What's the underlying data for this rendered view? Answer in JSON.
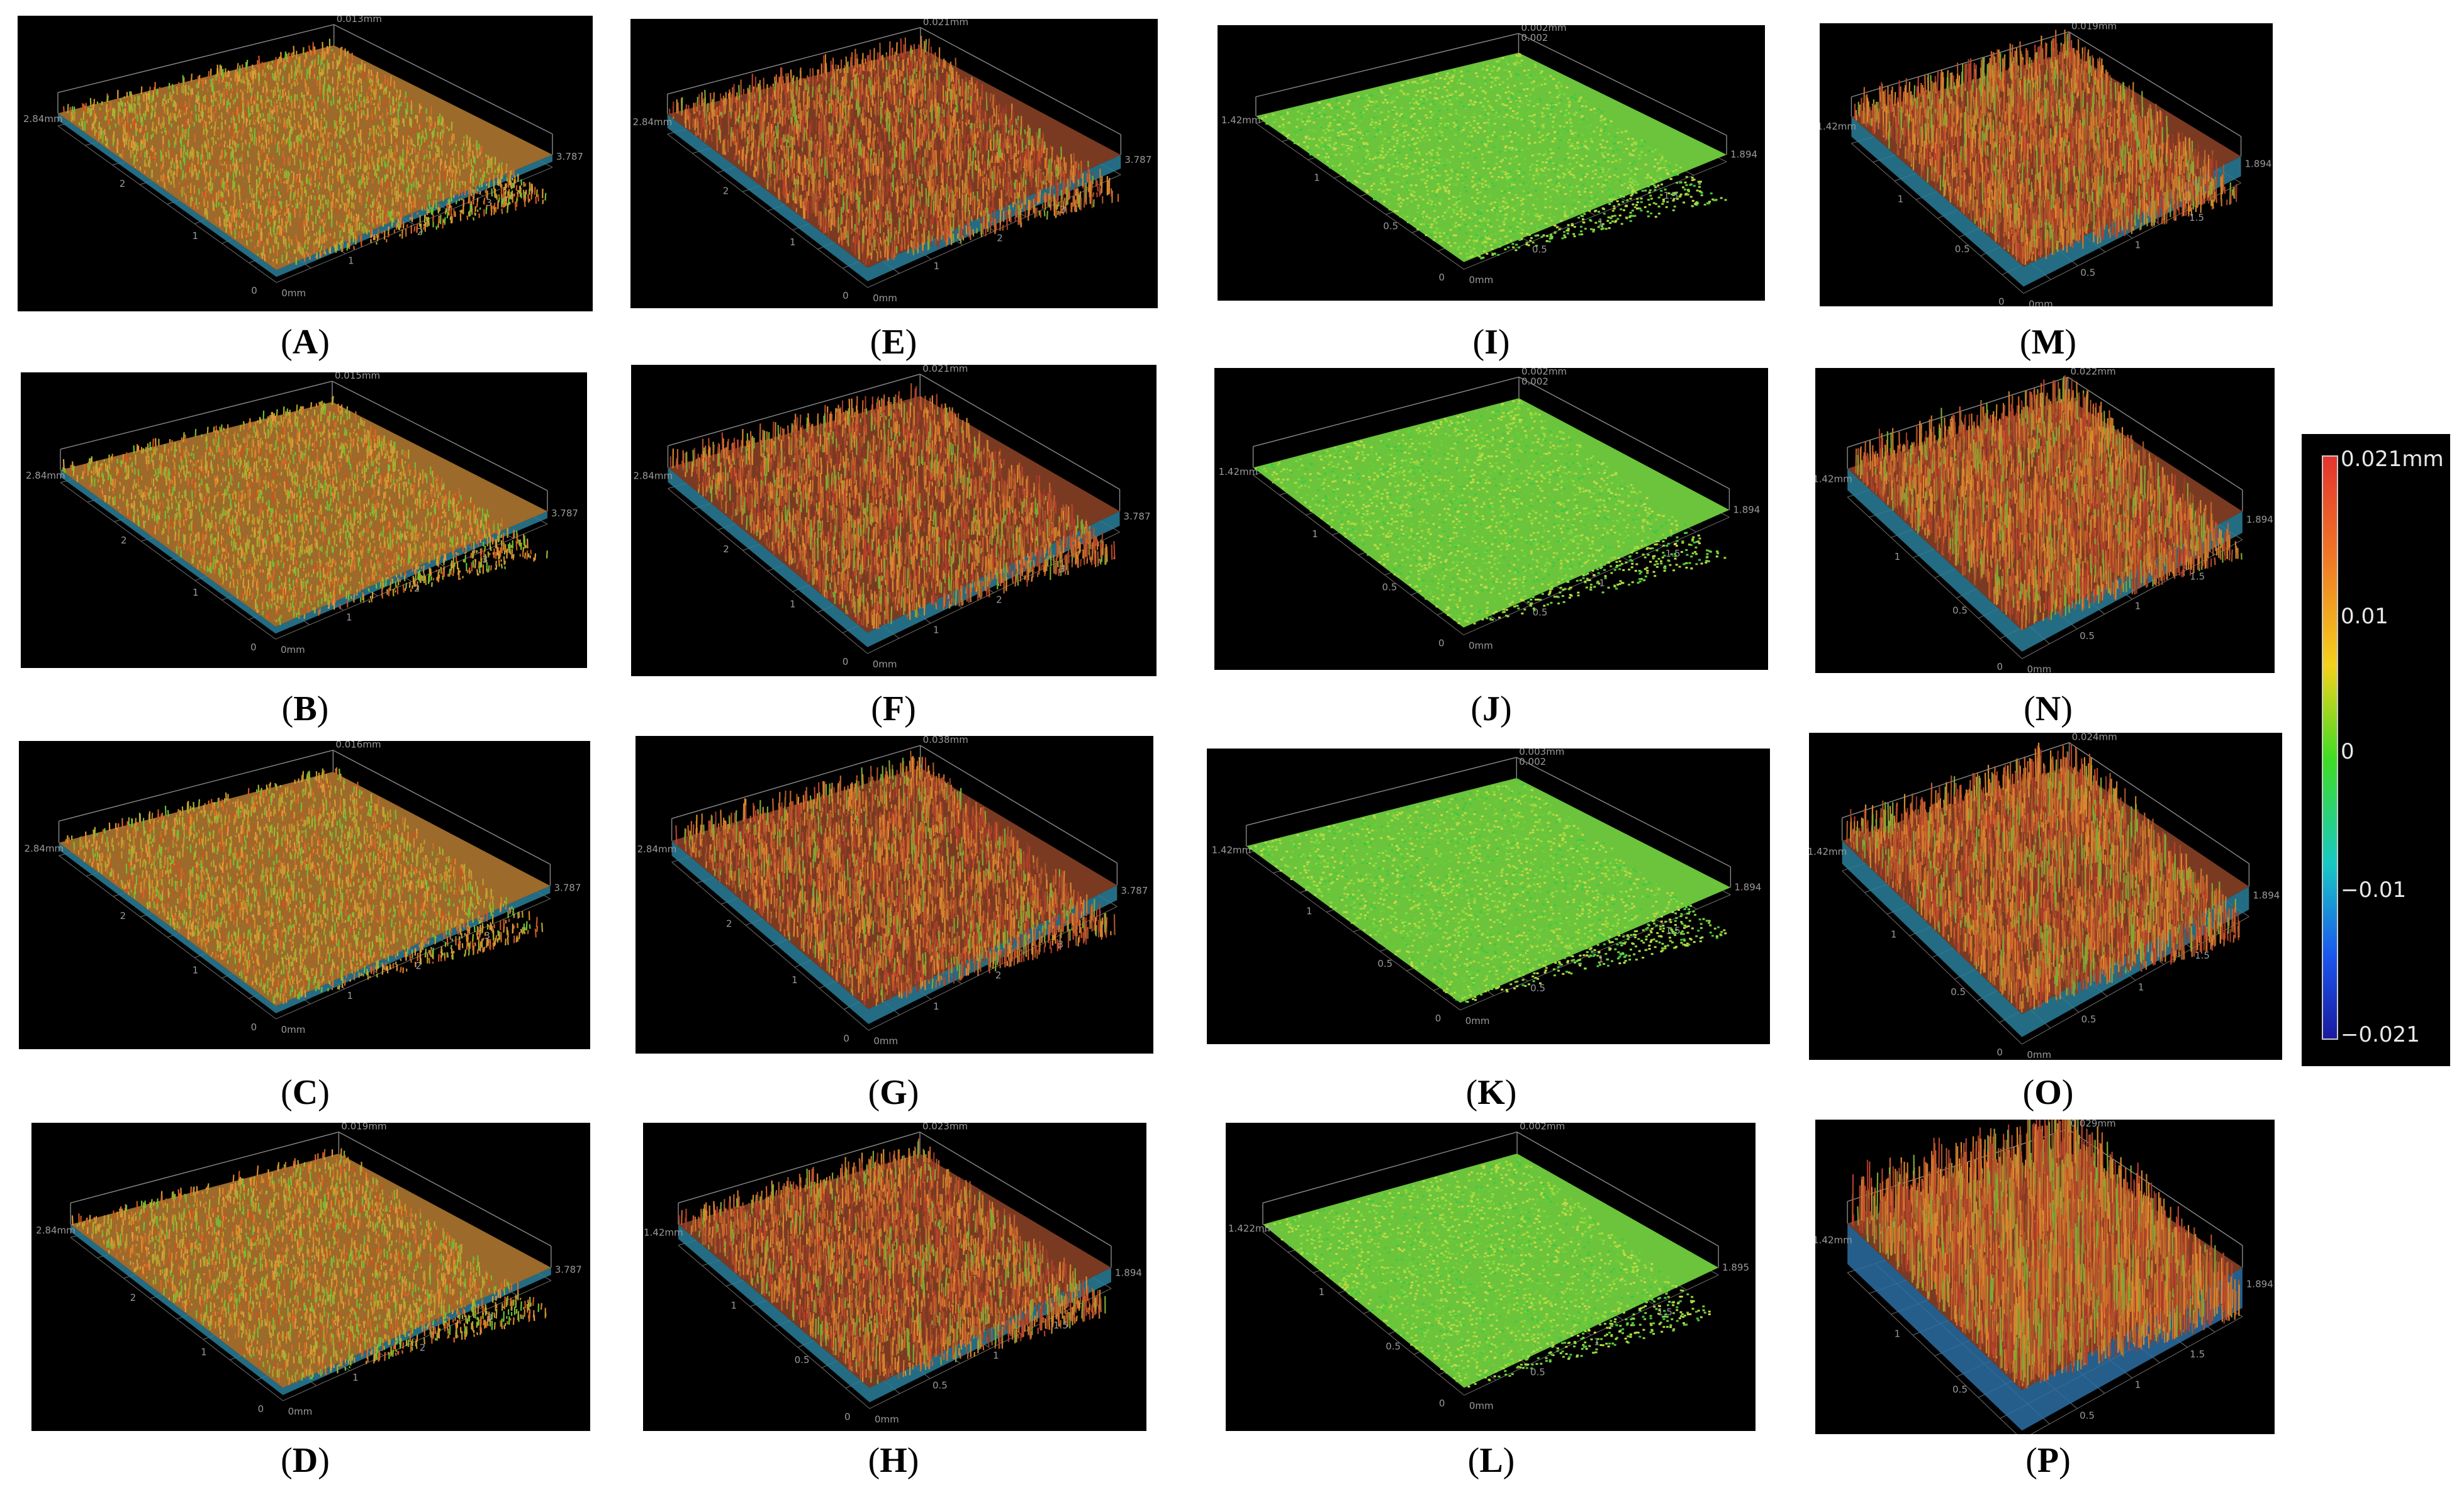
{
  "panels": [
    {
      "id": "A",
      "caption_letter": "A",
      "zmax": "0.013mm",
      "y_label": "2.84mm",
      "x_end": "3.787",
      "origin_y": "0",
      "origin_x": "0mm",
      "y_ticks": [
        "1",
        "2"
      ],
      "x_ticks": [
        "1",
        "2",
        "3"
      ],
      "style": "flat",
      "palette": "orange"
    },
    {
      "id": "B",
      "caption_letter": "B",
      "zmax": "0.015mm",
      "y_label": "2.84mm",
      "x_end": "3.787",
      "origin_y": "0",
      "origin_x": "0mm",
      "y_ticks": [
        "1",
        "2"
      ],
      "x_ticks": [
        "1",
        "2",
        "3"
      ],
      "style": "flat",
      "palette": "orange"
    },
    {
      "id": "C",
      "caption_letter": "C",
      "zmax": "0.016mm",
      "y_label": "2.84mm",
      "x_end": "3.787",
      "origin_y": "0",
      "origin_x": "0mm",
      "y_ticks": [
        "1",
        "2"
      ],
      "x_ticks": [
        "1",
        "2",
        "3"
      ],
      "style": "flat",
      "palette": "orange"
    },
    {
      "id": "D",
      "caption_letter": "D",
      "zmax": "0.019mm",
      "y_label": "2.84mm",
      "x_end": "3.787",
      "origin_y": "0",
      "origin_x": "0mm",
      "y_ticks": [
        "1",
        "2"
      ],
      "x_ticks": [
        "1",
        "2",
        "3"
      ],
      "style": "flat",
      "palette": "orange"
    },
    {
      "id": "E",
      "caption_letter": "E",
      "zmax": "0.021mm",
      "y_label": "2.84mm",
      "x_end": "3.787",
      "origin_y": "0",
      "origin_x": "0mm",
      "y_ticks": [
        "1",
        "2"
      ],
      "x_ticks": [
        "1",
        "2",
        "3"
      ],
      "style": "rough",
      "palette": "red"
    },
    {
      "id": "F",
      "caption_letter": "F",
      "zmax": "0.021mm",
      "y_label": "2.84mm",
      "x_end": "3.787",
      "origin_y": "0",
      "origin_x": "0mm",
      "y_ticks": [
        "1",
        "2"
      ],
      "x_ticks": [
        "1",
        "2",
        "3"
      ],
      "style": "rough",
      "palette": "red"
    },
    {
      "id": "G",
      "caption_letter": "G",
      "zmax": "0.038mm",
      "y_label": "2.84mm",
      "x_end": "3.787",
      "origin_y": "0",
      "origin_x": "0mm",
      "y_ticks": [
        "1",
        "2"
      ],
      "x_ticks": [
        "1",
        "2",
        "3"
      ],
      "style": "rough",
      "palette": "red"
    },
    {
      "id": "H",
      "caption_letter": "H",
      "zmax": "0.023mm",
      "y_label": "1.42mm",
      "x_end": "1.894",
      "origin_y": "0",
      "origin_x": "0mm",
      "y_ticks": [
        "0.5",
        "1"
      ],
      "x_ticks": [
        "0.5",
        "1",
        "1.5"
      ],
      "style": "rough",
      "palette": "red"
    },
    {
      "id": "I",
      "caption_letter": "I",
      "zmax": "0.002mm",
      "zmax2": "0.002",
      "y_label": "1.42mm",
      "x_end": "1.894",
      "origin_y": "0",
      "origin_x": "0mm",
      "y_ticks": [
        "0.5",
        "1"
      ],
      "x_ticks": [
        "0.5",
        "1",
        "1.5"
      ],
      "style": "smooth",
      "palette": "green"
    },
    {
      "id": "J",
      "caption_letter": "J",
      "zmax": "0.002mm",
      "zmax2": "0.002",
      "y_label": "1.42mm",
      "x_end": "1.894",
      "origin_y": "0",
      "origin_x": "0mm",
      "y_ticks": [
        "0.5",
        "1"
      ],
      "x_ticks": [
        "0.5",
        "1",
        "1.5"
      ],
      "style": "smooth",
      "palette": "green"
    },
    {
      "id": "K",
      "caption_letter": "K",
      "zmax": "0.003mm",
      "zmax2": "0.002",
      "y_label": "1.42mm",
      "x_end": "1.894",
      "origin_y": "0",
      "origin_x": "0mm",
      "y_ticks": [
        "0.5",
        "1"
      ],
      "x_ticks": [
        "0.5",
        "1",
        "1.5"
      ],
      "style": "smooth",
      "palette": "green"
    },
    {
      "id": "L",
      "caption_letter": "L",
      "zmax": "0.002mm",
      "y_label": "1.422mm",
      "x_end": "1.895",
      "origin_y": "0",
      "origin_x": "0mm",
      "y_ticks": [
        "0.5",
        "1"
      ],
      "x_ticks": [
        "0.5",
        "1",
        "1.5"
      ],
      "style": "smooth",
      "palette": "green"
    },
    {
      "id": "M",
      "caption_letter": "M",
      "zmax": "0.019mm",
      "y_label": "1.42mm",
      "x_end": "1.894",
      "origin_y": "0",
      "origin_x": "0mm",
      "y_ticks": [
        "0.5",
        "1"
      ],
      "x_ticks": [
        "0.5",
        "1",
        "1.5"
      ],
      "style": "tall",
      "palette": "red"
    },
    {
      "id": "N",
      "caption_letter": "N",
      "zmax": "0.022mm",
      "y_label": "1.42mm",
      "x_end": "1.894",
      "origin_y": "0",
      "origin_x": "0mm",
      "y_ticks": [
        "0.5",
        "1"
      ],
      "x_ticks": [
        "0.5",
        "1",
        "1.5"
      ],
      "style": "tall",
      "palette": "red"
    },
    {
      "id": "O",
      "caption_letter": "O",
      "zmax": "0.024mm",
      "y_label": "1.42mm",
      "x_end": "1.894",
      "origin_y": "0",
      "origin_x": "0mm",
      "y_ticks": [
        "0.5",
        "1"
      ],
      "x_ticks": [
        "0.5",
        "1",
        "1.5"
      ],
      "style": "tall",
      "palette": "red"
    },
    {
      "id": "P",
      "caption_letter": "P",
      "zmax": "0.029mm",
      "y_label": "1.42mm",
      "x_end": "1.894",
      "origin_y": "0",
      "origin_x": "0mm",
      "y_ticks": [
        "0.5",
        "1"
      ],
      "x_ticks": [
        "0.5",
        "1",
        "1.5"
      ],
      "style": "xtall",
      "palette": "red"
    }
  ],
  "colorbar": {
    "labels": [
      "0.021mm",
      "0.01",
      "0",
      "−0.01",
      "−0.021"
    ],
    "colors": [
      "#e4342f",
      "#f07b25",
      "#f4d21c",
      "#3fdc24",
      "#18c9c4",
      "#1b55ee",
      "#1a1a9e"
    ]
  }
}
